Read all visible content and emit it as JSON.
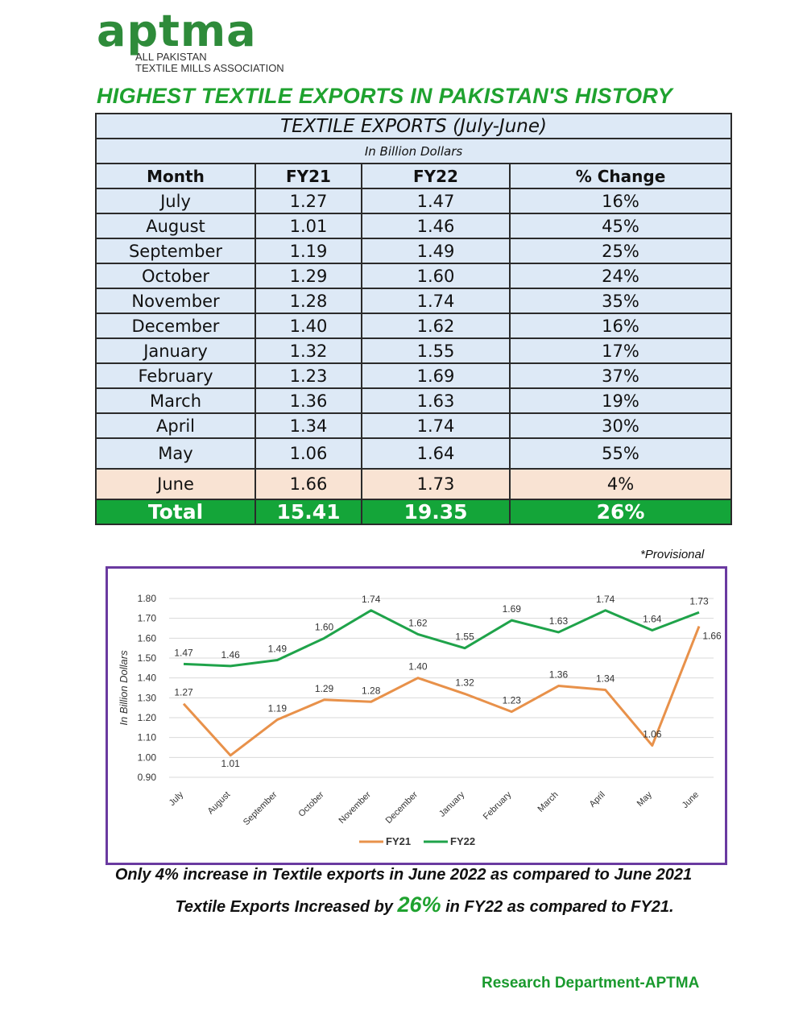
{
  "logo": {
    "word": "aptma",
    "sub_line1": "ALL PAKISTAN",
    "sub_line2": "TEXTILE MILLS ASSOCIATION"
  },
  "headline": "HIGHEST TEXTILE EXPORTS IN PAKISTAN'S HISTORY",
  "table": {
    "title": "TEXTILE EXPORTS (July-June)",
    "unit": "In Billion Dollars",
    "headers": [
      "Month",
      "FY21",
      "FY22",
      "% Change"
    ],
    "rows": [
      {
        "month": "July",
        "fy21": "1.27",
        "fy22": "1.47",
        "change": "16%"
      },
      {
        "month": "August",
        "fy21": "1.01",
        "fy22": "1.46",
        "change": "45%"
      },
      {
        "month": "September",
        "fy21": "1.19",
        "fy22": "1.49",
        "change": "25%"
      },
      {
        "month": "October",
        "fy21": "1.29",
        "fy22": "1.60",
        "change": "24%"
      },
      {
        "month": "November",
        "fy21": "1.28",
        "fy22": "1.74",
        "change": "35%"
      },
      {
        "month": "December",
        "fy21": "1.40",
        "fy22": "1.62",
        "change": "16%"
      },
      {
        "month": "January",
        "fy21": "1.32",
        "fy22": "1.55",
        "change": "17%"
      },
      {
        "month": "February",
        "fy21": "1.23",
        "fy22": "1.69",
        "change": "37%"
      },
      {
        "month": "March",
        "fy21": "1.36",
        "fy22": "1.63",
        "change": "19%"
      },
      {
        "month": "April",
        "fy21": "1.34",
        "fy22": "1.74",
        "change": "30%"
      },
      {
        "month": "May",
        "fy21": "1.06",
        "fy22": "1.64",
        "change": "55%"
      },
      {
        "month": "June",
        "fy21": "1.66",
        "fy22": "1.73",
        "change": "4%"
      }
    ],
    "total": {
      "month": "Total",
      "fy21": "15.41",
      "fy22": "19.35",
      "change": "26%"
    },
    "note": "*Provisional"
  },
  "chart_data": {
    "type": "line",
    "categories": [
      "July",
      "August",
      "September",
      "October",
      "November",
      "December",
      "January",
      "February",
      "March",
      "April",
      "May",
      "June"
    ],
    "series": [
      {
        "name": "FY21",
        "color": "#e8914a",
        "values": [
          1.27,
          1.01,
          1.19,
          1.29,
          1.28,
          1.4,
          1.32,
          1.23,
          1.36,
          1.34,
          1.06,
          1.66
        ]
      },
      {
        "name": "FY22",
        "color": "#1fa34a",
        "values": [
          1.47,
          1.46,
          1.49,
          1.6,
          1.74,
          1.62,
          1.55,
          1.69,
          1.63,
          1.74,
          1.64,
          1.73
        ]
      }
    ],
    "ylabel": "In Billion Dollars",
    "ylim": [
      0.9,
      1.8
    ],
    "yticks": [
      "0.90",
      "1.00",
      "1.10",
      "1.20",
      "1.30",
      "1.40",
      "1.50",
      "1.60",
      "1.70",
      "1.80"
    ],
    "grid": true,
    "legend": "bottom",
    "data_labels": true
  },
  "footnotes": {
    "line1": "Only 4% increase in Textile exports in June 2022 as compared to June 2021",
    "line2_pre": "Textile Exports Increased by ",
    "line2_big": "26%",
    "line2_post": " in FY22 as compared to FY21."
  },
  "credit": "Research Department-APTMA",
  "colors": {
    "brand_green": "#1fa22f",
    "table_fill": "#dde9f6",
    "june_fill": "#f9e3d3",
    "total_fill": "#14a539",
    "chart_border": "#6a3aa0"
  }
}
